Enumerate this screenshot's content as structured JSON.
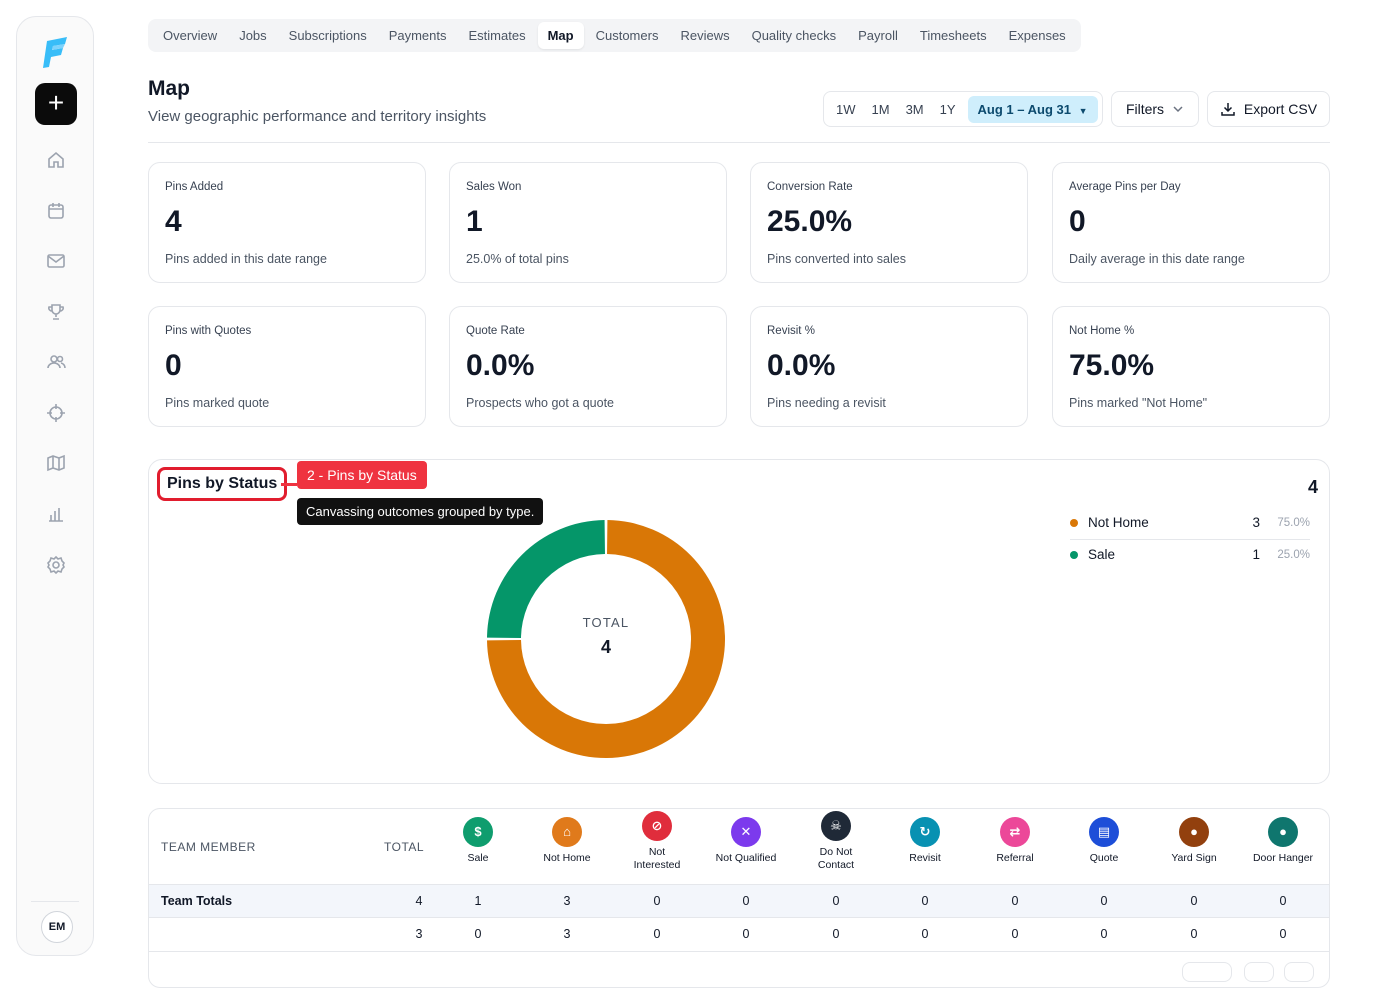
{
  "tabs": [
    "Overview",
    "Jobs",
    "Subscriptions",
    "Payments",
    "Estimates",
    "Map",
    "Customers",
    "Reviews",
    "Quality checks",
    "Payroll",
    "Timesheets",
    "Expenses"
  ],
  "active_tab": "Map",
  "header": {
    "title": "Map",
    "subtitle": "View geographic performance and territory insights"
  },
  "range": {
    "options": [
      "1W",
      "1M",
      "3M",
      "1Y"
    ],
    "selected_label": "Aug 1 – Aug 31"
  },
  "filters_label": "Filters",
  "export_label": "Export CSV",
  "user_initials": "EM",
  "kpis": [
    {
      "label": "Pins Added",
      "value": "4",
      "desc": "Pins added in this date range"
    },
    {
      "label": "Sales Won",
      "value": "1",
      "desc": "25.0% of total pins"
    },
    {
      "label": "Conversion Rate",
      "value": "25.0%",
      "desc": "Pins converted into sales"
    },
    {
      "label": "Average Pins per Day",
      "value": "0",
      "desc": "Daily average in this date range"
    },
    {
      "label": "Pins with Quotes",
      "value": "0",
      "desc": "Pins marked quote"
    },
    {
      "label": "Quote Rate",
      "value": "0.0%",
      "desc": "Prospects who got a quote"
    },
    {
      "label": "Revisit %",
      "value": "0.0%",
      "desc": "Pins needing a revisit"
    },
    {
      "label": "Not Home %",
      "value": "75.0%",
      "desc": "Pins marked \"Not Home\""
    }
  ],
  "pins_chart": {
    "title": "Pins by Status",
    "annotation_tag": "2 - Pins by Status",
    "tooltip": "Canvassing outcomes grouped by type.",
    "center_label": "TOTAL",
    "center_value": "4",
    "legend_total": "4"
  },
  "chart_data": {
    "type": "pie",
    "title": "Pins by Status",
    "categories": [
      "Not Home",
      "Sale"
    ],
    "values": [
      3,
      1
    ],
    "percent_labels": [
      "75.0%",
      "25.0%"
    ],
    "colors": [
      "#d97706",
      "#059669"
    ],
    "donut": true,
    "total": 4,
    "legend_placement": "right"
  },
  "table": {
    "member_header": "TEAM MEMBER",
    "total_header": "TOTAL",
    "statuses": [
      {
        "label": "Sale",
        "color": "#0f9d6e",
        "glyph": "$",
        "icon": "dollar-icon"
      },
      {
        "label": "Not Home",
        "color": "#e07a1b",
        "glyph": "⌂",
        "icon": "home-icon"
      },
      {
        "label": "Not Interested",
        "color": "#e02d3c",
        "glyph": "⊘",
        "icon": "ban-icon"
      },
      {
        "label": "Not Qualified",
        "color": "#7c3aed",
        "glyph": "✕",
        "icon": "user-x-icon"
      },
      {
        "label": "Do Not Contact",
        "color": "#1f2937",
        "glyph": "☠",
        "icon": "skull-icon"
      },
      {
        "label": "Revisit",
        "color": "#0891b2",
        "glyph": "↻",
        "icon": "refresh-icon"
      },
      {
        "label": "Referral",
        "color": "#ec4899",
        "glyph": "⇄",
        "icon": "referral-icon"
      },
      {
        "label": "Quote",
        "color": "#1d4ed8",
        "glyph": "▤",
        "icon": "document-icon"
      },
      {
        "label": "Yard Sign",
        "color": "#92400e",
        "glyph": "●",
        "icon": "yard-sign-icon"
      },
      {
        "label": "Door Hanger",
        "color": "#0f766e",
        "glyph": "●",
        "icon": "door-hanger-icon"
      }
    ],
    "rows": [
      {
        "name": "Team Totals",
        "total": "4",
        "values": [
          "1",
          "3",
          "0",
          "0",
          "0",
          "0",
          "0",
          "0",
          "0",
          "0"
        ]
      },
      {
        "name": "",
        "total": "3",
        "values": [
          "0",
          "3",
          "0",
          "0",
          "0",
          "0",
          "0",
          "0",
          "0",
          "0"
        ]
      }
    ]
  }
}
